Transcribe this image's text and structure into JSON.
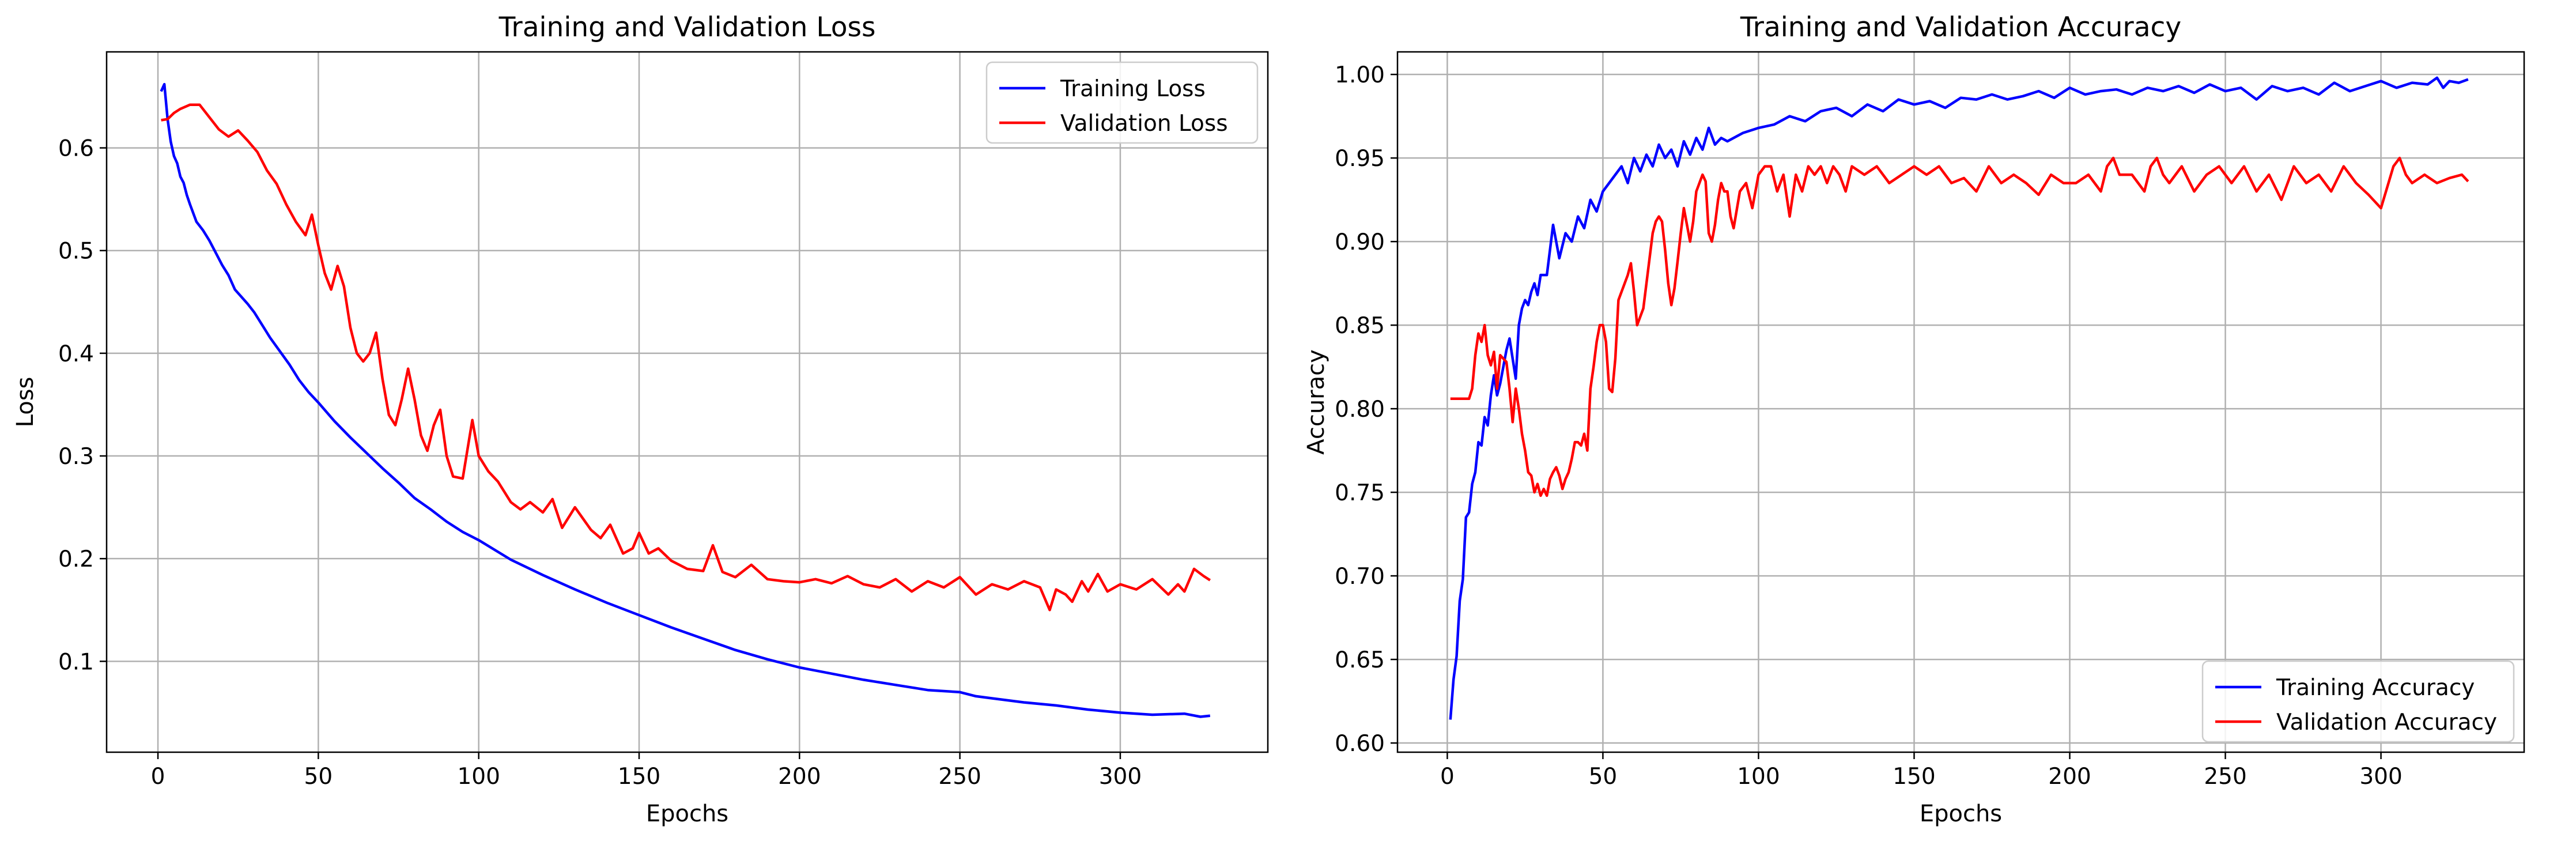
{
  "chart_data": [
    {
      "type": "line",
      "title": "Training and Validation Loss",
      "xlabel": "Epochs",
      "ylabel": "Loss",
      "xlim": [
        -16,
        346
      ],
      "ylim": [
        0.0115,
        0.6935
      ],
      "xticks": [
        0,
        50,
        100,
        150,
        200,
        250,
        300
      ],
      "yticks": [
        0.1,
        0.2,
        0.3,
        0.4,
        0.5,
        0.6
      ],
      "xtick_labels": [
        "0",
        "50",
        "100",
        "150",
        "200",
        "250",
        "300"
      ],
      "ytick_labels": [
        "0.1",
        "0.2",
        "0.3",
        "0.4",
        "0.5",
        "0.6"
      ],
      "grid": true,
      "legend_position": "upper right",
      "legend_entries": [
        "Training Loss",
        "Validation Loss"
      ],
      "series": [
        {
          "name": "Training Loss",
          "color": "#0000ff",
          "x": [
            1,
            2,
            3,
            4,
            5,
            6,
            7,
            8,
            9,
            10,
            12,
            14,
            16,
            18,
            20,
            22,
            24,
            26,
            28,
            30,
            32,
            35,
            38,
            41,
            44,
            47,
            50,
            55,
            60,
            65,
            70,
            75,
            80,
            85,
            90,
            95,
            100,
            110,
            120,
            130,
            140,
            150,
            160,
            170,
            180,
            190,
            200,
            210,
            220,
            230,
            240,
            250,
            255,
            260,
            270,
            280,
            290,
            300,
            310,
            320,
            325,
            328
          ],
          "y": [
            0.655,
            0.662,
            0.628,
            0.606,
            0.592,
            0.585,
            0.572,
            0.566,
            0.554,
            0.545,
            0.528,
            0.52,
            0.51,
            0.498,
            0.486,
            0.476,
            0.462,
            0.455,
            0.448,
            0.44,
            0.43,
            0.415,
            0.402,
            0.389,
            0.374,
            0.362,
            0.352,
            0.334,
            0.318,
            0.303,
            0.288,
            0.274,
            0.259,
            0.248,
            0.236,
            0.226,
            0.218,
            0.199,
            0.184,
            0.17,
            0.157,
            0.145,
            0.133,
            0.122,
            0.111,
            0.102,
            0.094,
            0.088,
            0.082,
            0.077,
            0.072,
            0.07,
            0.066,
            0.064,
            0.06,
            0.057,
            0.053,
            0.05,
            0.048,
            0.049,
            0.046,
            0.047
          ]
        },
        {
          "name": "Validation Loss",
          "color": "#ff0000",
          "x": [
            1,
            3,
            5,
            7,
            10,
            13,
            16,
            19,
            22,
            25,
            28,
            31,
            34,
            37,
            40,
            43,
            46,
            48,
            50,
            52,
            54,
            56,
            58,
            60,
            62,
            64,
            66,
            68,
            70,
            72,
            74,
            76,
            78,
            80,
            82,
            84,
            86,
            88,
            90,
            92,
            95,
            98,
            100,
            103,
            106,
            110,
            113,
            116,
            120,
            123,
            126,
            130,
            135,
            138,
            141,
            145,
            148,
            150,
            153,
            156,
            160,
            165,
            170,
            173,
            176,
            180,
            185,
            190,
            195,
            200,
            205,
            210,
            215,
            220,
            225,
            230,
            235,
            240,
            245,
            250,
            255,
            260,
            265,
            270,
            275,
            278,
            280,
            283,
            285,
            288,
            290,
            293,
            296,
            300,
            305,
            310,
            315,
            318,
            320,
            323,
            326,
            328
          ],
          "y": [
            0.627,
            0.628,
            0.634,
            0.638,
            0.642,
            0.642,
            0.63,
            0.618,
            0.611,
            0.617,
            0.607,
            0.596,
            0.578,
            0.565,
            0.545,
            0.528,
            0.515,
            0.535,
            0.505,
            0.478,
            0.462,
            0.485,
            0.465,
            0.425,
            0.4,
            0.392,
            0.4,
            0.42,
            0.375,
            0.34,
            0.33,
            0.355,
            0.385,
            0.355,
            0.32,
            0.305,
            0.33,
            0.345,
            0.3,
            0.28,
            0.278,
            0.335,
            0.3,
            0.285,
            0.275,
            0.255,
            0.248,
            0.255,
            0.245,
            0.258,
            0.23,
            0.25,
            0.228,
            0.22,
            0.233,
            0.205,
            0.21,
            0.225,
            0.205,
            0.21,
            0.198,
            0.19,
            0.188,
            0.213,
            0.187,
            0.182,
            0.194,
            0.18,
            0.178,
            0.177,
            0.18,
            0.176,
            0.183,
            0.175,
            0.172,
            0.18,
            0.168,
            0.178,
            0.172,
            0.182,
            0.165,
            0.175,
            0.17,
            0.178,
            0.172,
            0.15,
            0.17,
            0.165,
            0.158,
            0.178,
            0.168,
            0.185,
            0.168,
            0.175,
            0.17,
            0.18,
            0.165,
            0.175,
            0.168,
            0.19,
            0.183,
            0.179
          ]
        }
      ]
    },
    {
      "type": "line",
      "title": "Training and Validation Accuracy",
      "xlabel": "Epochs",
      "ylabel": "Accuracy",
      "xlim": [
        -16,
        346
      ],
      "ylim": [
        0.5945,
        1.0135
      ],
      "xticks": [
        0,
        50,
        100,
        150,
        200,
        250,
        300
      ],
      "yticks": [
        0.6,
        0.65,
        0.7,
        0.75,
        0.8,
        0.85,
        0.9,
        0.95,
        1.0
      ],
      "xtick_labels": [
        "0",
        "50",
        "100",
        "150",
        "200",
        "250",
        "300"
      ],
      "ytick_labels": [
        "0.60",
        "0.65",
        "0.70",
        "0.75",
        "0.80",
        "0.85",
        "0.90",
        "0.95",
        "1.00"
      ],
      "grid": true,
      "legend_position": "lower right",
      "legend_entries": [
        "Training Accuracy",
        "Validation Accuracy"
      ],
      "series": [
        {
          "name": "Training Accuracy",
          "color": "#0000ff",
          "x": [
            1,
            2,
            3,
            4,
            5,
            6,
            7,
            8,
            9,
            10,
            11,
            12,
            13,
            14,
            15,
            16,
            17,
            18,
            19,
            20,
            21,
            22,
            23,
            24,
            25,
            26,
            27,
            28,
            29,
            30,
            32,
            34,
            36,
            38,
            40,
            42,
            44,
            46,
            48,
            50,
            52,
            54,
            56,
            58,
            60,
            62,
            64,
            66,
            68,
            70,
            72,
            74,
            76,
            78,
            80,
            82,
            84,
            86,
            88,
            90,
            95,
            100,
            105,
            110,
            115,
            120,
            125,
            130,
            135,
            140,
            145,
            150,
            155,
            160,
            165,
            170,
            175,
            180,
            185,
            190,
            195,
            200,
            205,
            210,
            215,
            220,
            225,
            230,
            235,
            240,
            245,
            250,
            255,
            260,
            265,
            270,
            275,
            280,
            285,
            290,
            295,
            300,
            305,
            310,
            315,
            318,
            320,
            322,
            325,
            328
          ],
          "y": [
            0.614,
            0.638,
            0.652,
            0.685,
            0.698,
            0.735,
            0.738,
            0.755,
            0.762,
            0.78,
            0.778,
            0.795,
            0.79,
            0.808,
            0.82,
            0.808,
            0.815,
            0.825,
            0.835,
            0.842,
            0.83,
            0.818,
            0.85,
            0.86,
            0.865,
            0.862,
            0.87,
            0.875,
            0.868,
            0.88,
            0.88,
            0.91,
            0.89,
            0.905,
            0.9,
            0.915,
            0.908,
            0.925,
            0.918,
            0.93,
            0.935,
            0.94,
            0.945,
            0.935,
            0.95,
            0.942,
            0.952,
            0.945,
            0.958,
            0.95,
            0.955,
            0.945,
            0.96,
            0.952,
            0.962,
            0.955,
            0.968,
            0.958,
            0.962,
            0.96,
            0.965,
            0.968,
            0.97,
            0.975,
            0.972,
            0.978,
            0.98,
            0.975,
            0.982,
            0.978,
            0.985,
            0.982,
            0.984,
            0.98,
            0.986,
            0.985,
            0.988,
            0.985,
            0.987,
            0.99,
            0.986,
            0.992,
            0.988,
            0.99,
            0.991,
            0.988,
            0.992,
            0.99,
            0.993,
            0.989,
            0.994,
            0.99,
            0.992,
            0.985,
            0.993,
            0.99,
            0.992,
            0.988,
            0.995,
            0.99,
            0.993,
            0.996,
            0.992,
            0.995,
            0.994,
            0.998,
            0.992,
            0.996,
            0.995,
            0.997
          ]
        },
        {
          "name": "Validation Accuracy",
          "color": "#ff0000",
          "x": [
            1,
            3,
            5,
            7,
            8,
            9,
            10,
            11,
            12,
            13,
            14,
            15,
            16,
            17,
            18,
            19,
            20,
            21,
            22,
            23,
            24,
            25,
            26,
            27,
            28,
            29,
            30,
            31,
            32,
            33,
            34,
            35,
            36,
            37,
            38,
            39,
            40,
            41,
            42,
            43,
            44,
            45,
            46,
            47,
            48,
            49,
            50,
            51,
            52,
            53,
            54,
            55,
            56,
            57,
            58,
            59,
            60,
            61,
            62,
            63,
            64,
            65,
            66,
            67,
            68,
            69,
            70,
            71,
            72,
            73,
            74,
            75,
            76,
            77,
            78,
            79,
            80,
            81,
            82,
            83,
            84,
            85,
            86,
            87,
            88,
            89,
            90,
            91,
            92,
            94,
            96,
            98,
            100,
            102,
            104,
            106,
            108,
            110,
            112,
            114,
            116,
            118,
            120,
            122,
            124,
            126,
            128,
            130,
            134,
            138,
            142,
            146,
            150,
            154,
            158,
            162,
            166,
            170,
            174,
            178,
            182,
            186,
            190,
            194,
            198,
            202,
            206,
            210,
            212,
            214,
            216,
            220,
            224,
            226,
            228,
            230,
            232,
            236,
            240,
            244,
            248,
            252,
            256,
            260,
            264,
            268,
            272,
            276,
            280,
            284,
            288,
            292,
            296,
            300,
            304,
            306,
            308,
            310,
            314,
            318,
            322,
            326,
            328
          ],
          "y": [
            0.806,
            0.806,
            0.806,
            0.806,
            0.812,
            0.832,
            0.845,
            0.84,
            0.85,
            0.832,
            0.826,
            0.834,
            0.812,
            0.832,
            0.83,
            0.828,
            0.812,
            0.792,
            0.812,
            0.8,
            0.785,
            0.775,
            0.762,
            0.76,
            0.75,
            0.755,
            0.748,
            0.752,
            0.748,
            0.758,
            0.762,
            0.765,
            0.76,
            0.752,
            0.758,
            0.762,
            0.77,
            0.78,
            0.78,
            0.778,
            0.785,
            0.775,
            0.812,
            0.825,
            0.84,
            0.85,
            0.85,
            0.84,
            0.812,
            0.81,
            0.83,
            0.865,
            0.87,
            0.875,
            0.88,
            0.887,
            0.87,
            0.85,
            0.855,
            0.86,
            0.875,
            0.89,
            0.905,
            0.912,
            0.915,
            0.912,
            0.895,
            0.875,
            0.862,
            0.872,
            0.888,
            0.905,
            0.92,
            0.91,
            0.9,
            0.912,
            0.93,
            0.935,
            0.94,
            0.936,
            0.905,
            0.9,
            0.91,
            0.925,
            0.935,
            0.93,
            0.93,
            0.915,
            0.908,
            0.93,
            0.935,
            0.92,
            0.94,
            0.945,
            0.945,
            0.93,
            0.94,
            0.915,
            0.94,
            0.93,
            0.945,
            0.94,
            0.945,
            0.935,
            0.945,
            0.94,
            0.93,
            0.945,
            0.94,
            0.945,
            0.935,
            0.94,
            0.945,
            0.94,
            0.945,
            0.935,
            0.938,
            0.93,
            0.945,
            0.935,
            0.94,
            0.935,
            0.928,
            0.94,
            0.935,
            0.935,
            0.94,
            0.93,
            0.945,
            0.95,
            0.94,
            0.94,
            0.93,
            0.945,
            0.95,
            0.94,
            0.935,
            0.945,
            0.93,
            0.94,
            0.945,
            0.935,
            0.945,
            0.93,
            0.94,
            0.925,
            0.945,
            0.935,
            0.94,
            0.93,
            0.945,
            0.935,
            0.928,
            0.92,
            0.945,
            0.95,
            0.94,
            0.935,
            0.94,
            0.935,
            0.938,
            0.94,
            0.936
          ]
        }
      ]
    }
  ]
}
